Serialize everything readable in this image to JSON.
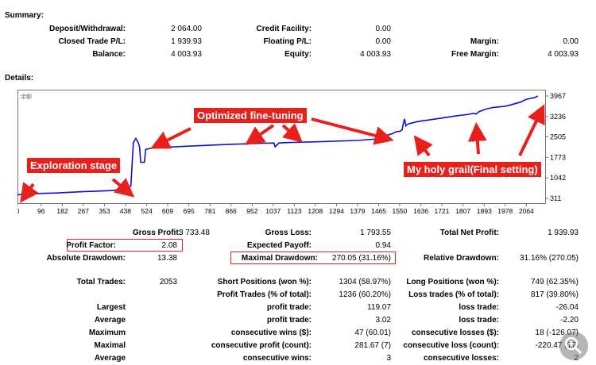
{
  "summary": {
    "title": "Summary:",
    "deposit_label": "Deposit/Withdrawal:",
    "deposit_value": "2 064.00",
    "credit_label": "Credit Facility:",
    "credit_value": "0.00",
    "closed_pl_label": "Closed Trade P/L:",
    "closed_pl_value": "1 939.93",
    "floating_label": "Floating P/L:",
    "floating_value": "0.00",
    "margin_label": "Margin:",
    "margin_value": "0.00",
    "balance_label": "Balance:",
    "balance_value": "4 003.93",
    "equity_label": "Equity:",
    "equity_value": "4 003.93",
    "free_margin_label": "Free Margin:",
    "free_margin_value": "4 003.93"
  },
  "details": {
    "title": "Details:"
  },
  "chart_data": {
    "type": "line",
    "title": "",
    "corner_label": "余额",
    "x_ticks": [
      "0",
      "96",
      "182",
      "267",
      "353",
      "438",
      "524",
      "609",
      "695",
      "781",
      "866",
      "952",
      "1037",
      "1123",
      "1208",
      "1294",
      "1379",
      "1465",
      "1550",
      "1636",
      "1721",
      "1807",
      "1893",
      "1978",
      "2064"
    ],
    "y_ticks": [
      "3967",
      "3236",
      "2505",
      "1773",
      "1042",
      "311"
    ],
    "ylim": [
      311,
      3967
    ],
    "xlim": [
      0,
      2140
    ],
    "series": [
      {
        "color": "#1010c8",
        "x": [
          0,
          60,
          100,
          150,
          200,
          260,
          320,
          380,
          430,
          450,
          455,
          460,
          470,
          480,
          490,
          495,
          500,
          505,
          515,
          520,
          530,
          540,
          560,
          700,
          860,
          1000,
          1040,
          1045,
          1060,
          1080,
          1200,
          1380,
          1465,
          1480,
          1500,
          1520,
          1540,
          1550,
          1560,
          1565,
          1570,
          1575,
          1580,
          1590,
          1620,
          1640,
          1660,
          1720,
          1780,
          1820,
          1840,
          1850,
          1860,
          1870,
          1900,
          1930,
          1978,
          2000,
          2040,
          2064,
          2080,
          2100,
          2110
        ],
        "y": [
          440,
          470,
          490,
          500,
          520,
          550,
          570,
          590,
          640,
          700,
          720,
          760,
          2300,
          2450,
          2300,
          2150,
          1600,
          1600,
          1600,
          2060,
          2080,
          2100,
          2120,
          2180,
          2240,
          2280,
          2290,
          2150,
          2290,
          2300,
          2330,
          2380,
          2440,
          2500,
          2570,
          2620,
          2700,
          2700,
          2760,
          3000,
          3150,
          2900,
          2950,
          2980,
          3050,
          3080,
          3100,
          3180,
          3260,
          3300,
          3330,
          3350,
          3320,
          3400,
          3500,
          3560,
          3600,
          3650,
          3750,
          3850,
          3880,
          3920,
          3967
        ]
      }
    ]
  },
  "annotations": {
    "exploration": "Exploration stage",
    "fine_tuning": "Optimized fine-tuning",
    "holy_grail": "My holy grail(Final setting)"
  },
  "stats": {
    "gross_profit_label": "Gross Profit:",
    "gross_profit_value": "3 733.48",
    "gross_loss_label": "Gross Loss:",
    "gross_loss_value": "1 793.55",
    "total_net_label": "Total Net Profit:",
    "total_net_value": "1 939.93",
    "profit_factor_label": "Profit Factor:",
    "profit_factor_value": "2.08",
    "expected_payoff_label": "Expected Payoff:",
    "expected_payoff_value": "0.94",
    "abs_dd_label": "Absolute Drawdown:",
    "abs_dd_value": "13.38",
    "max_dd_label": "Maximal Drawdown:",
    "max_dd_value": "270.05 (31.16%)",
    "rel_dd_label": "Relative Drawdown:",
    "rel_dd_value": "31.16% (270.05)",
    "total_trades_label": "Total Trades:",
    "total_trades_value": "2053",
    "short_label": "Short Positions (won %):",
    "short_value": "1304 (58.97%)",
    "long_label": "Long Positions (won %):",
    "long_value": "749 (62.35%)",
    "profit_trades_label": "Profit Trades (% of total):",
    "profit_trades_value": "1236 (60.20%)",
    "loss_trades_label": "Loss trades (% of total):",
    "loss_trades_value": "817 (39.80%)",
    "largest_label": "Largest",
    "largest_profit_label": "profit trade:",
    "largest_profit_value": "119.07",
    "largest_loss_label": "loss trade:",
    "largest_loss_value": "-26.04",
    "average_label": "Average",
    "average_profit_label": "profit trade:",
    "average_profit_value": "3.02",
    "average_loss_label": "loss trade:",
    "average_loss_value": "-2.20",
    "maximum_label": "Maximum",
    "max_wins_label": "consecutive wins ($):",
    "max_wins_value": "47 (60.01)",
    "max_losses_label": "consecutive losses ($):",
    "max_losses_value": "18 (-126.07)",
    "maximal_label": "Maximal",
    "maximal_profit_label": "consecutive profit (count):",
    "maximal_profit_value": "281.67 (7)",
    "maximal_loss_label": "consecutive loss (count):",
    "maximal_loss_value": "-220.47 (17)",
    "average2_label": "Average",
    "avg_wins_label": "consecutive wins:",
    "avg_wins_value": "3",
    "avg_losses_label": "consecutive losses:",
    "avg_losses_value": "2"
  }
}
